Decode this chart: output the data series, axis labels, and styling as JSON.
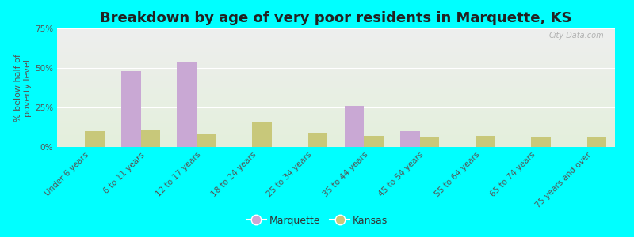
{
  "title": "Breakdown by age of very poor residents in Marquette, KS",
  "ylabel": "% below half of\npoverty level",
  "categories": [
    "Under 6 years",
    "6 to 11 years",
    "12 to 17 years",
    "18 to 24 years",
    "25 to 34 years",
    "35 to 44 years",
    "45 to 54 years",
    "55 to 64 years",
    "65 to 74 years",
    "75 years and over"
  ],
  "marquette_values": [
    0,
    48,
    54,
    0,
    0,
    26,
    10,
    0,
    0,
    0
  ],
  "kansas_values": [
    10,
    11,
    8,
    16,
    9,
    7,
    6,
    7,
    6,
    6
  ],
  "marquette_color": "#c9a8d4",
  "kansas_color": "#c8c87a",
  "background_color": "#00ffff",
  "plot_bg_top": "#eeeeee",
  "plot_bg_bottom": "#e4f0dc",
  "ylim": [
    0,
    75
  ],
  "yticks": [
    0,
    25,
    50,
    75
  ],
  "ytick_labels": [
    "0%",
    "25%",
    "50%",
    "75%"
  ],
  "bar_width": 0.35,
  "title_fontsize": 13,
  "axis_label_fontsize": 8,
  "tick_label_fontsize": 7.5,
  "legend_fontsize": 9,
  "watermark": "City-Data.com"
}
